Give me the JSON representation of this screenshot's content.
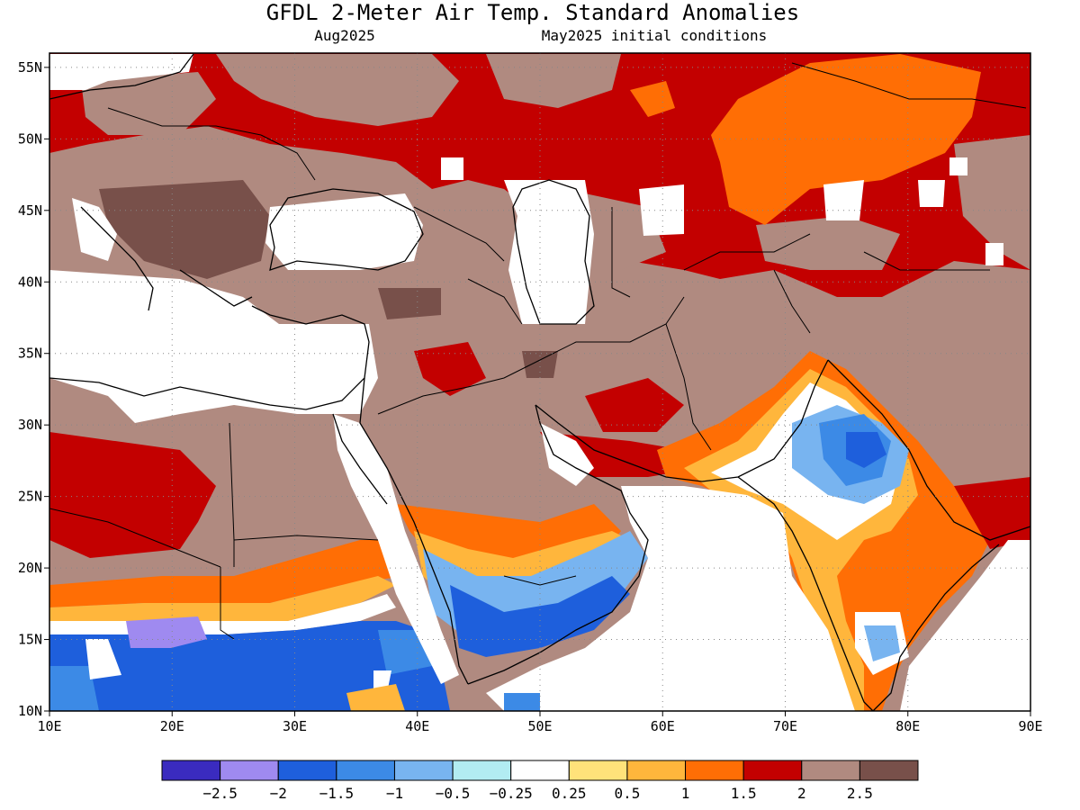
{
  "title": "GFDL 2-Meter Air Temp. Standard Anomalies",
  "subtitle_left": "Aug2025",
  "subtitle_right": "May2025 initial conditions",
  "axes": {
    "lon_labels": [
      "10E",
      "20E",
      "30E",
      "40E",
      "50E",
      "60E",
      "70E",
      "80E",
      "90E"
    ],
    "lat_labels": [
      "55N",
      "50N",
      "45N",
      "40N",
      "35N",
      "30N",
      "25N",
      "20N",
      "15N",
      "10N"
    ],
    "lon_values": [
      10,
      20,
      30,
      40,
      50,
      60,
      70,
      80,
      90
    ],
    "lat_values": [
      55,
      50,
      45,
      40,
      35,
      30,
      25,
      20,
      15,
      10
    ],
    "lon_range": [
      10,
      90
    ],
    "lat_range": [
      10,
      56
    ],
    "grid": "dotted"
  },
  "legend": {
    "placement": "bottom",
    "colors": [
      "#3a2bbf",
      "#9f8af0",
      "#1e5fdc",
      "#3c8ae6",
      "#78b4f0",
      "#b2ecf2",
      "#ffffff",
      "#ffe27a",
      "#ffb63c",
      "#ff6e05",
      "#c30000",
      "#b08a80",
      "#78504a"
    ],
    "labels": [
      "-2.5",
      "-2",
      "-1.5",
      "-1",
      "-0.5",
      "-0.25",
      "0.25",
      "0.5",
      "1",
      "1.5",
      "2",
      "2.5"
    ]
  },
  "colors": {
    "red": "#c30000",
    "orange": "#ff6e05",
    "brown": "#b08a80",
    "darkbrown": "#78504a",
    "blue": "#1e5fdc",
    "lightblue": "#78b4f0",
    "yellow": "#ffb63c"
  }
}
